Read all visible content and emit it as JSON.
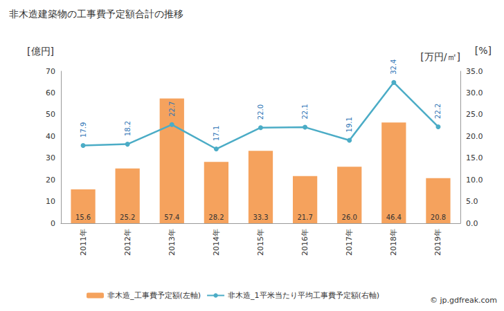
{
  "chart_data": {
    "type": "bar",
    "title": "非木造建築物の工事費予定額合計の推移",
    "y_label": "[億円]",
    "y2_label": "[万円/㎡]",
    "annotations": [
      "[%]",
      "© jp.gdfreak.com"
    ],
    "categories": [
      "2011年",
      "2012年",
      "2013年",
      "2014年",
      "2015年",
      "2016年",
      "2017年",
      "2018年",
      "2019年"
    ],
    "series": [
      {
        "name": "非木造_工事費予定額(左軸)",
        "type": "bar",
        "color": "#f5a25d",
        "values": [
          15.6,
          25.2,
          57.4,
          28.2,
          33.3,
          21.7,
          26.0,
          46.4,
          20.8
        ],
        "value_labels": [
          "15.6",
          "25.2",
          "57.4",
          "28.2",
          "33.3",
          "21.7",
          "26.0",
          "46.4",
          "20.8"
        ]
      },
      {
        "name": "非木造_1平米当たり平均工事費予定額(右軸)",
        "type": "line",
        "axis": "y2",
        "color": "#4bacc6",
        "marker": "circle",
        "values": [
          17.9,
          18.2,
          22.7,
          17.1,
          22.0,
          22.1,
          19.1,
          32.4,
          22.2
        ],
        "value_labels": [
          "17.9",
          "18.2",
          "22.7",
          "17.1",
          "22.0",
          "22.1",
          "19.1",
          "32.4",
          "22.2"
        ]
      }
    ],
    "ylim": [
      0,
      70
    ],
    "yticks": [
      0,
      10,
      20,
      30,
      40,
      50,
      60,
      70
    ],
    "y2lim": [
      0,
      35
    ],
    "y2ticks": [
      {
        "value": 0,
        "label": "0.0"
      },
      {
        "value": 5,
        "label": "5.0"
      },
      {
        "value": 10,
        "label": "10.0"
      },
      {
        "value": 15,
        "label": "15.0"
      },
      {
        "value": 20,
        "label": "20.0"
      },
      {
        "value": 25,
        "label": "25.0"
      },
      {
        "value": 30,
        "label": "30.0"
      },
      {
        "value": 35,
        "label": "35.0"
      }
    ],
    "grid": false,
    "legend": "bottom",
    "data_labels": true
  }
}
